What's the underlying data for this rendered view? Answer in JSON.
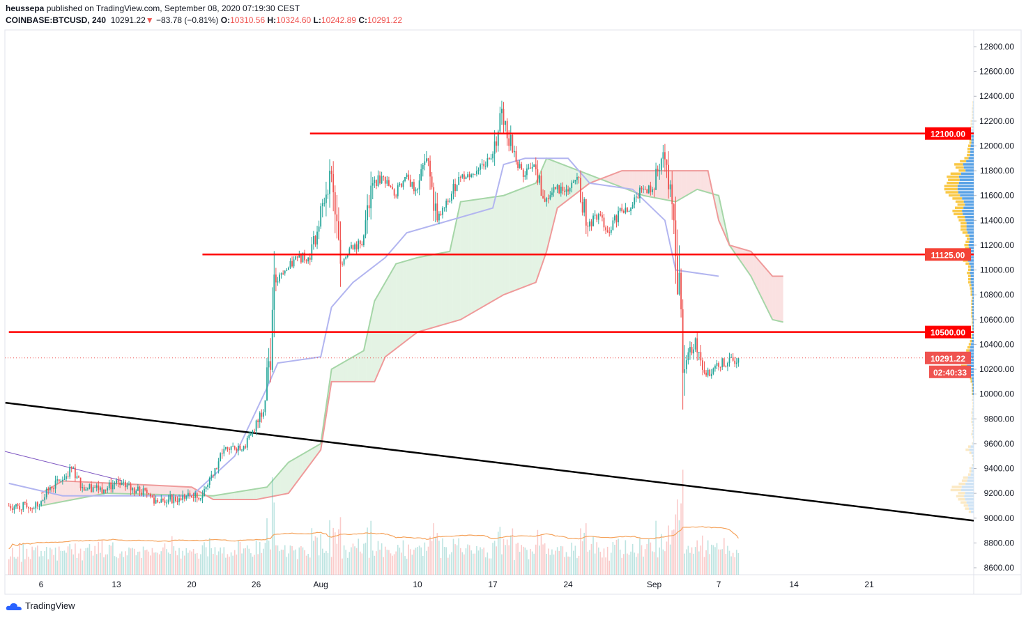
{
  "header": {
    "author": "heussepa",
    "published": "published on TradingView.com, September 08, 2020 07:19:30 CEST",
    "symbol": "COINBASE:BTCUSD, 240",
    "last": "10291.22",
    "change": "−83.78 (−0.81%)",
    "o_label": "O:",
    "o": "10310.56",
    "h_label": "H:",
    "h": "10324.60",
    "l_label": "L:",
    "l": "10242.89",
    "c_label": "C:",
    "c": "10291.22"
  },
  "colors": {
    "up": "#26a69a",
    "down": "#ef5350",
    "level": "#ff0000",
    "kijun": "#b2b5f0",
    "span_a": "#a5d6a7",
    "span_b": "#ef9a9a",
    "volume_ma": "#f5a35c",
    "profile_up": "#5ba3e6",
    "profile_down": "#f9c846"
  },
  "footer": {
    "brand": "TradingView"
  },
  "chart_data": {
    "type": "candlestick",
    "title": "",
    "interval": "240",
    "y_range": [
      8600,
      12800
    ],
    "y_ticks": [
      "12800.00",
      "12600.00",
      "12400.00",
      "12200.00",
      "12000.00",
      "11800.00",
      "11600.00",
      "11400.00",
      "11200.00",
      "11000.00",
      "10800.00",
      "10600.00",
      "10400.00",
      "10200.00",
      "10000.00",
      "9800.00",
      "9600.00",
      "9400.00",
      "9200.00",
      "9000.00",
      "8800.00",
      "8600.00"
    ],
    "x_ticks": [
      {
        "label": "6",
        "date": "2020-07-06"
      },
      {
        "label": "13",
        "date": "2020-07-13"
      },
      {
        "label": "20",
        "date": "2020-07-20"
      },
      {
        "label": "26",
        "date": "2020-07-26"
      },
      {
        "label": "Aug",
        "date": "2020-08-01"
      },
      {
        "label": "10",
        "date": "2020-08-10"
      },
      {
        "label": "17",
        "date": "2020-08-17"
      },
      {
        "label": "24",
        "date": "2020-08-24"
      },
      {
        "label": "Sep",
        "date": "2020-09-01"
      },
      {
        "label": "7",
        "date": "2020-09-07"
      },
      {
        "label": "14",
        "date": "2020-09-14"
      },
      {
        "label": "21",
        "date": "2020-09-21"
      }
    ],
    "start_date": "2020-07-03",
    "daily_close": [
      9100,
      9080,
      9100,
      9250,
      9300,
      9400,
      9250,
      9250,
      9230,
      9280,
      9250,
      9220,
      9200,
      9130,
      9150,
      9160,
      9180,
      9160,
      9350,
      9520,
      9580,
      9580,
      9700,
      9950,
      10900,
      11000,
      11100,
      11100,
      11350,
      11800,
      11050,
      11200,
      11200,
      11700,
      11750,
      11600,
      11750,
      11650,
      11900,
      11400,
      11550,
      11750,
      11750,
      11850,
      11900,
      12300,
      11950,
      11750,
      11850,
      11550,
      11650,
      11650,
      11750,
      11350,
      11450,
      11300,
      11500,
      11500,
      11650,
      11650,
      11950,
      11400,
      10200,
      10450,
      10150,
      10250,
      10250,
      10291.22
    ],
    "levels": [
      {
        "price": 12100,
        "label": "12100.00",
        "from_date": "2020-07-31"
      },
      {
        "price": 11125,
        "label": "11125.00",
        "from_date": "2020-07-21"
      },
      {
        "price": 10500,
        "label": "10500.00",
        "from_date": "2020-07-03"
      }
    ],
    "last_price": {
      "label": "10291.22",
      "countdown": "02:40:33"
    },
    "trendline": {
      "from": {
        "date": "2020-07-03",
        "price": 9930
      },
      "to": {
        "date": "2020-09-30",
        "price": 8980
      }
    },
    "kijun": [
      [
        "2020-07-03",
        9280
      ],
      [
        "2020-07-08",
        9180
      ],
      [
        "2020-07-20",
        9180
      ],
      [
        "2020-07-24",
        9500
      ],
      [
        "2020-07-27",
        10050
      ],
      [
        "2020-07-28",
        10250
      ],
      [
        "2020-08-01",
        10300
      ],
      [
        "2020-08-02",
        10700
      ],
      [
        "2020-08-04",
        10900
      ],
      [
        "2020-08-07",
        11100
      ],
      [
        "2020-08-09",
        11300
      ],
      [
        "2020-08-17",
        11500
      ],
      [
        "2020-08-18",
        11850
      ],
      [
        "2020-08-20",
        11900
      ],
      [
        "2020-08-24",
        11900
      ],
      [
        "2020-08-26",
        11700
      ],
      [
        "2020-08-30",
        11650
      ],
      [
        "2020-09-02",
        11400
      ],
      [
        "2020-09-03",
        11000
      ],
      [
        "2020-09-07",
        10950
      ]
    ],
    "span_a": [
      [
        "2020-07-06",
        9100
      ],
      [
        "2020-07-12",
        9200
      ],
      [
        "2020-07-22",
        9180
      ],
      [
        "2020-07-27",
        9250
      ],
      [
        "2020-07-29",
        9450
      ],
      [
        "2020-08-01",
        9600
      ],
      [
        "2020-08-02",
        10200
      ],
      [
        "2020-08-05",
        10350
      ],
      [
        "2020-08-06",
        10750
      ],
      [
        "2020-08-08",
        11050
      ],
      [
        "2020-08-10",
        11100
      ],
      [
        "2020-08-13",
        11150
      ],
      [
        "2020-08-14",
        11550
      ],
      [
        "2020-08-18",
        11600
      ],
      [
        "2020-08-21",
        11700
      ],
      [
        "2020-08-22",
        11900
      ],
      [
        "2020-08-25",
        11800
      ],
      [
        "2020-08-28",
        11700
      ],
      [
        "2020-08-31",
        11600
      ],
      [
        "2020-09-03",
        11550
      ],
      [
        "2020-09-05",
        11650
      ],
      [
        "2020-09-07",
        11600
      ],
      [
        "2020-09-08",
        11200
      ],
      [
        "2020-09-10",
        10950
      ],
      [
        "2020-09-12",
        10600
      ],
      [
        "2020-09-13",
        10580
      ]
    ],
    "span_b": [
      [
        "2020-07-06",
        9200
      ],
      [
        "2020-07-08",
        9300
      ],
      [
        "2020-07-20",
        9250
      ],
      [
        "2020-07-22",
        9150
      ],
      [
        "2020-07-26",
        9150
      ],
      [
        "2020-07-29",
        9200
      ],
      [
        "2020-08-01",
        9550
      ],
      [
        "2020-08-02",
        10100
      ],
      [
        "2020-08-06",
        10100
      ],
      [
        "2020-08-07",
        10300
      ],
      [
        "2020-08-10",
        10500
      ],
      [
        "2020-08-14",
        10600
      ],
      [
        "2020-08-18",
        10800
      ],
      [
        "2020-08-21",
        10900
      ],
      [
        "2020-08-22",
        11150
      ],
      [
        "2020-08-23",
        11500
      ],
      [
        "2020-08-26",
        11700
      ],
      [
        "2020-08-29",
        11800
      ],
      [
        "2020-09-06",
        11800
      ],
      [
        "2020-09-07",
        11400
      ],
      [
        "2020-09-08",
        11200
      ],
      [
        "2020-09-10",
        11150
      ],
      [
        "2020-09-12",
        10950
      ],
      [
        "2020-09-13",
        10950
      ]
    ]
  }
}
